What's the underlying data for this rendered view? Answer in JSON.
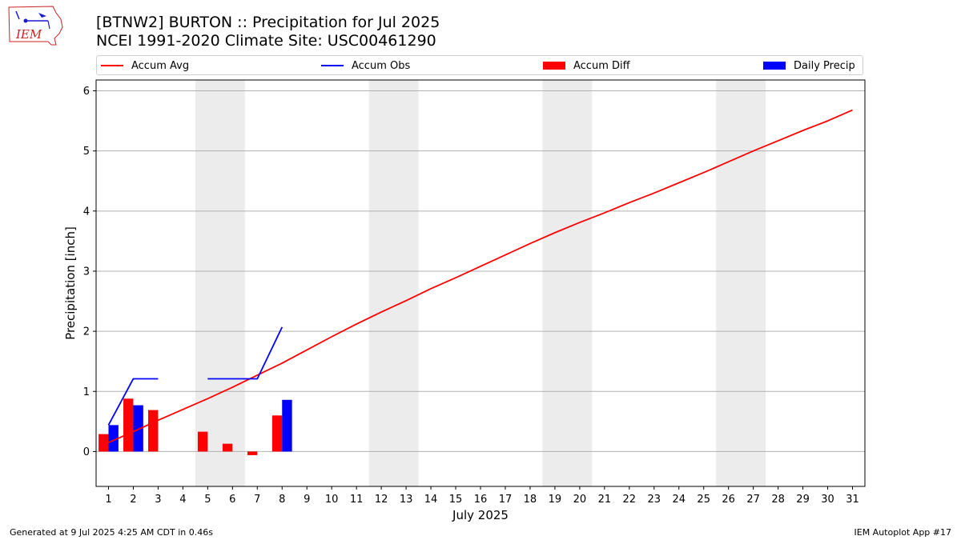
{
  "header": {
    "title_line1": "[BTNW2] BURTON :: Precipitation for Jul 2025",
    "title_line2": "NCEI 1991-2020 Climate Site: USC00461290"
  },
  "logo": {
    "text": "IEM",
    "color": "#cc2222",
    "accent": "#1a1ad0"
  },
  "legend": {
    "items": [
      {
        "label": "Accum Avg",
        "kind": "line",
        "color": "#ff0000"
      },
      {
        "label": "Accum Obs",
        "kind": "line",
        "color": "#0000ff"
      },
      {
        "label": "Accum Diff",
        "kind": "patch",
        "color": "#ff0000"
      },
      {
        "label": "Daily Precip",
        "kind": "patch",
        "color": "#0000ff"
      }
    ]
  },
  "footer": {
    "generated": "Generated at 9 Jul 2025 4:25 AM CDT in 0.46s",
    "app": "IEM Autoplot App #17"
  },
  "chart_data": {
    "type": "bar",
    "xlabel": "July 2025",
    "ylabel": "Precipitation [inch]",
    "xlim": [
      0.5,
      31.5
    ],
    "ylim": [
      -0.58,
      6.18
    ],
    "yticks": [
      0,
      1,
      2,
      3,
      4,
      5,
      6
    ],
    "x": [
      1,
      2,
      3,
      4,
      5,
      6,
      7,
      8,
      9,
      10,
      11,
      12,
      13,
      14,
      15,
      16,
      17,
      18,
      19,
      20,
      21,
      22,
      23,
      24,
      25,
      26,
      27,
      28,
      29,
      30,
      31
    ],
    "grid": "horizontal",
    "weekend_bands": [
      [
        4.5,
        6.5
      ],
      [
        11.5,
        13.5
      ],
      [
        18.5,
        20.5
      ],
      [
        25.5,
        27.5
      ]
    ],
    "weekend_color": "#ececec",
    "series": [
      {
        "name": "Accum Avg",
        "kind": "line",
        "color": "#ff0000",
        "x": [
          1,
          2,
          3,
          4,
          5,
          6,
          7,
          8,
          9,
          10,
          11,
          12,
          13,
          14,
          15,
          16,
          17,
          18,
          19,
          20,
          21,
          22,
          23,
          24,
          25,
          26,
          27,
          28,
          29,
          30,
          31
        ],
        "values": [
          0.15,
          0.33,
          0.52,
          0.7,
          0.88,
          1.07,
          1.27,
          1.47,
          1.69,
          1.91,
          2.12,
          2.32,
          2.51,
          2.71,
          2.89,
          3.08,
          3.27,
          3.46,
          3.64,
          3.81,
          3.97,
          4.14,
          4.3,
          4.47,
          4.64,
          4.82,
          5.0,
          5.17,
          5.34,
          5.5,
          5.68
        ]
      },
      {
        "name": "Accum Obs",
        "kind": "line",
        "color": "#0000ff",
        "segments": [
          {
            "x": [
              1,
              2,
              3
            ],
            "values": [
              0.44,
              1.21,
              1.21
            ]
          },
          {
            "x": [
              5,
              6,
              7,
              8
            ],
            "values": [
              1.21,
              1.21,
              1.21,
              2.07
            ]
          }
        ]
      },
      {
        "name": "Accum Diff",
        "kind": "bar",
        "color": "#ff0000",
        "offset": -0.2,
        "x": [
          1,
          2,
          3,
          5,
          6,
          7,
          8
        ],
        "values": [
          0.29,
          0.88,
          0.69,
          0.33,
          0.13,
          -0.06,
          0.6
        ]
      },
      {
        "name": "Daily Precip",
        "kind": "bar",
        "color": "#0000ff",
        "offset": 0.2,
        "x": [
          1,
          2,
          8
        ],
        "values": [
          0.44,
          0.77,
          0.86
        ]
      }
    ]
  }
}
